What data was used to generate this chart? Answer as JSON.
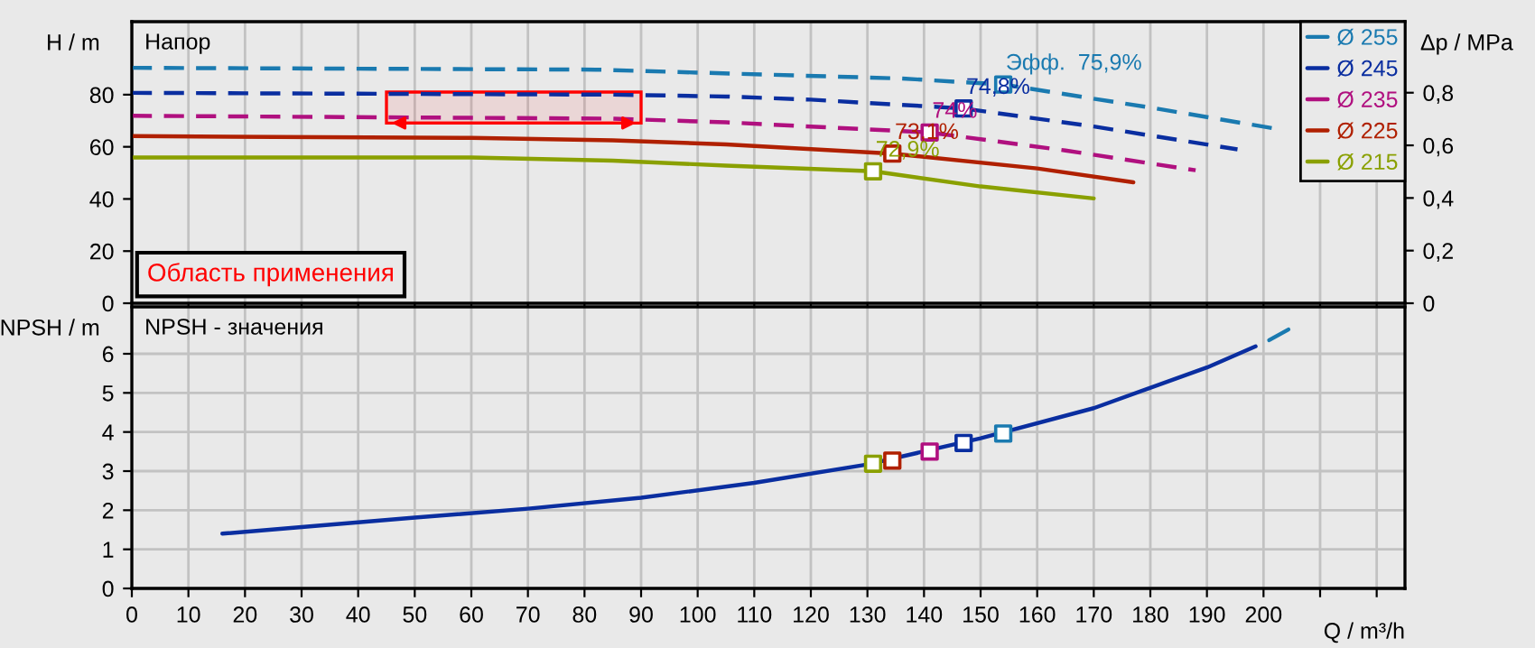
{
  "chart_data": [
    {
      "type": "line",
      "title": "Напор",
      "ylabel": "H / m",
      "y2label": "Δp / MPa",
      "xlim": [
        0,
        225
      ],
      "ylim": [
        0,
        108
      ],
      "y2lim": [
        0,
        1.07
      ],
      "xticks": [
        0,
        10,
        20,
        30,
        40,
        50,
        60,
        70,
        80,
        90,
        100,
        110,
        120,
        130,
        140,
        150,
        160,
        170,
        180,
        190,
        200,
        210,
        220
      ],
      "yticks": [
        0,
        20,
        40,
        60,
        80
      ],
      "y2ticks": [
        0,
        {
          "value": 0.2,
          "label": "0,2"
        },
        {
          "value": 0.4,
          "label": "0,4"
        },
        {
          "value": 0.6,
          "label": "0,6"
        },
        {
          "value": 0.8,
          "label": "0,8"
        }
      ],
      "tick_labels": "y",
      "grid": "x",
      "legend": "top right",
      "marker": "none",
      "series": [
        {
          "name": "Ø 255",
          "color": "#1a7ab0",
          "line_style": "dashed",
          "x": [
            0,
            82,
            136,
            154,
            181,
            202
          ],
          "values": [
            90.3,
            89.6,
            86.2,
            83.9,
            74.7,
            67
          ]
        },
        {
          "name": "Ø 245",
          "color": "#0a2ea0",
          "line_style": "dashed",
          "x": [
            0,
            85,
            105,
            120,
            147,
            170,
            195.4
          ],
          "values": [
            80.7,
            80,
            79.3,
            78.1,
            74.7,
            67.8,
            59
          ]
        },
        {
          "name": "Ø 235",
          "color": "#b0107f",
          "line_style": "dashed",
          "x": [
            0,
            85,
            105,
            141,
            165,
            188
          ],
          "values": [
            71.9,
            70.8,
            69.4,
            65.5,
            58.6,
            51
          ]
        },
        {
          "name": "Ø 225",
          "color": "#b02000",
          "line_style": "solid",
          "x": [
            0,
            60,
            85,
            105,
            134.4,
            160,
            177
          ],
          "values": [
            64.1,
            63.4,
            62.5,
            60.9,
            57.4,
            51.7,
            46.4
          ]
        },
        {
          "name": "Ø 215",
          "color": "#8aa000",
          "line_style": "solid",
          "x": [
            0,
            60,
            85,
            105,
            131,
            150,
            170
          ],
          "values": [
            55.9,
            55.9,
            54.7,
            52.8,
            50.6,
            44.8,
            40.2
          ]
        },
        {
          "type": "scatter",
          "marker": "square",
          "x": [
            131,
            134.4,
            141,
            147,
            154
          ],
          "values": [
            50.6,
            57.4,
            65.5,
            74.7,
            83.9
          ],
          "colors": [
            "#8aa000",
            "#b02000",
            "#b0107f",
            "#0a2ea0",
            "#1a7ab0"
          ]
        }
      ],
      "annotations": [
        {
          "text": "Эфф.  75,9%",
          "x": 154,
          "y": 83.9
        },
        {
          "text": "74,8%",
          "x": 147,
          "y": 74.7
        },
        {
          "text": "74%",
          "x": 141,
          "y": 65.5
        },
        {
          "text": "73,1%",
          "x": 134.4,
          "y": 57.4
        },
        {
          "text": "72,9%",
          "x": 131,
          "y": 50.6
        }
      ],
      "bands": [
        {
          "axis": "x",
          "from": 45,
          "to": 90,
          "label": "Область применения",
          "color": "#ff0000"
        }
      ]
    },
    {
      "type": "line",
      "title": "NPSH - значения",
      "ylabel": "NPSH / m",
      "xlabel": "Q / m³/h",
      "xlim": [
        0,
        225
      ],
      "ylim": [
        0,
        7.2
      ],
      "xticks": [
        0,
        10,
        20,
        30,
        40,
        50,
        60,
        70,
        80,
        90,
        100,
        110,
        120,
        130,
        140,
        150,
        160,
        170,
        180,
        190,
        200,
        {
          "value": 210,
          "label": null
        },
        {
          "value": 220,
          "label": null
        }
      ],
      "yticks": [
        0,
        1,
        2,
        3,
        4,
        5,
        6
      ],
      "grid": true,
      "marker": "none",
      "series": [
        {
          "color": "#0a2ea0",
          "line_style": "solid",
          "x": [
            16,
            30,
            50,
            70,
            90,
            110,
            130,
            150,
            170,
            190,
            198.6
          ],
          "values": [
            1.4,
            1.57,
            1.81,
            2.04,
            2.32,
            2.7,
            3.17,
            3.84,
            4.61,
            5.65,
            6.19
          ]
        },
        {
          "color": "#1a7ab0",
          "line_style": "solid",
          "x": [
            201,
            204.4
          ],
          "values": [
            6.35,
            6.62
          ]
        },
        {
          "type": "scatter",
          "marker": "square",
          "x": [
            131,
            134.4,
            141,
            147,
            154
          ],
          "values": [
            3.19,
            3.27,
            3.5,
            3.72,
            3.96
          ],
          "colors": [
            "#8aa000",
            "#b02000",
            "#b0107f",
            "#0a2ea0",
            "#1a7ab0"
          ]
        }
      ]
    }
  ]
}
